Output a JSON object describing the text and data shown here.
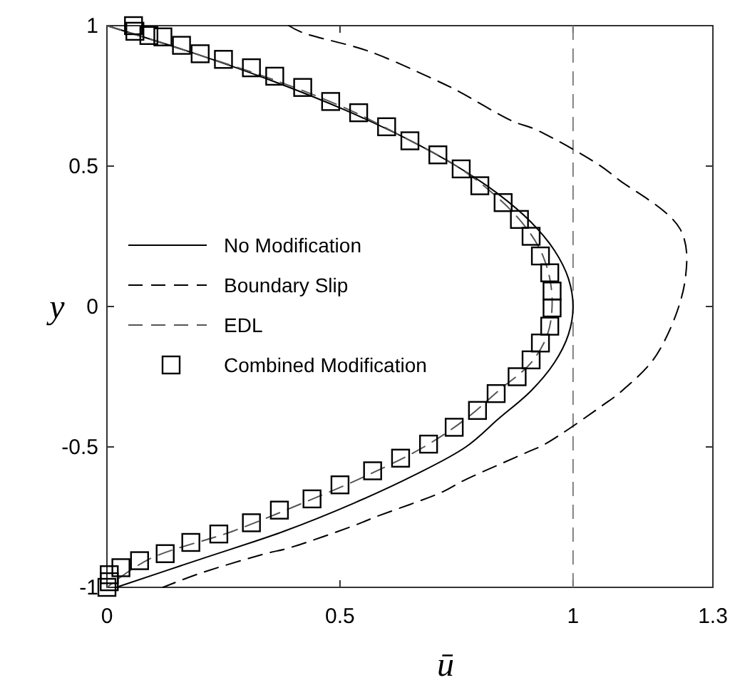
{
  "chart_data": {
    "type": "line",
    "xlabel": "ū",
    "ylabel": "y",
    "xlim": [
      0,
      1.3
    ],
    "xticks": [
      0,
      0.5,
      1,
      1.3
    ],
    "ylim": [
      -1,
      1
    ],
    "yticks": [
      -1,
      -0.5,
      0,
      0.5,
      1
    ],
    "grid": false,
    "legend": "left",
    "ref_lines": [
      {
        "axis": "x",
        "value": 1,
        "color": "#808080",
        "line_style": "dashed"
      }
    ],
    "series": [
      {
        "name": "No Modification",
        "color": "#000000",
        "line_style": "solid",
        "x": [
          0,
          0.19,
          0.36,
          0.51,
          0.64,
          0.75,
          0.84,
          0.91,
          0.96,
          0.99,
          1.0,
          0.99,
          0.96,
          0.91,
          0.84,
          0.77,
          0.66,
          0.53,
          0.38,
          0.2,
          0.02
        ],
        "values": [
          1,
          0.9,
          0.8,
          0.7,
          0.6,
          0.5,
          0.4,
          0.3,
          0.2,
          0.1,
          0,
          -0.1,
          -0.2,
          -0.3,
          -0.4,
          -0.5,
          -0.6,
          -0.7,
          -0.8,
          -0.9,
          -1
        ]
      },
      {
        "name": "Boundary Slip",
        "color": "#000000",
        "line_style": "dashed",
        "x": [
          0.39,
          0.42,
          0.56,
          0.7,
          0.75,
          0.87,
          0.92,
          1.055,
          1.095,
          1.23,
          1.24,
          1.18,
          1.105,
          1.065,
          0.94,
          0.9,
          0.765,
          0.72,
          0.575,
          0.53,
          0.39,
          0.34,
          0.2,
          0.12
        ],
        "values": [
          1,
          0.975,
          0.91,
          0.81,
          0.77,
          0.66,
          0.63,
          0.505,
          0.455,
          0.275,
          0.09,
          -0.17,
          -0.3,
          -0.35,
          -0.49,
          -0.52,
          -0.62,
          -0.66,
          -0.75,
          -0.78,
          -0.86,
          -0.88,
          -0.95,
          -1
        ]
      },
      {
        "name": "EDL",
        "color": "#555555",
        "line_style": "dashed",
        "x": [
          0,
          0.19,
          0.37,
          0.52,
          0.64,
          0.75,
          0.83,
          0.89,
          0.93,
          0.95,
          0.955,
          0.945,
          0.91,
          0.84,
          0.77,
          0.68,
          0.56,
          0.42,
          0.27,
          0.09,
          0
        ],
        "values": [
          1,
          0.9,
          0.8,
          0.7,
          0.6,
          0.5,
          0.4,
          0.3,
          0.2,
          0.1,
          0,
          -0.1,
          -0.2,
          -0.3,
          -0.4,
          -0.5,
          -0.6,
          -0.7,
          -0.8,
          -0.9,
          -1
        ]
      },
      {
        "name": "Combined Modification",
        "type": "scatter",
        "color": "#000000",
        "marker": "square",
        "x": [
          0.057,
          0.06,
          0.09,
          0.12,
          0.16,
          0.2,
          0.25,
          0.31,
          0.36,
          0.42,
          0.48,
          0.54,
          0.6,
          0.65,
          0.71,
          0.76,
          0.8,
          0.85,
          0.885,
          0.91,
          0.93,
          0.95,
          0.955,
          0.955,
          0.95,
          0.93,
          0.91,
          0.88,
          0.835,
          0.795,
          0.745,
          0.69,
          0.63,
          0.57,
          0.5,
          0.44,
          0.37,
          0.31,
          0.24,
          0.18,
          0.125,
          0.07,
          0.03,
          0.005,
          0.005,
          0
        ],
        "values": [
          1.0,
          0.98,
          0.965,
          0.96,
          0.93,
          0.9,
          0.88,
          0.85,
          0.82,
          0.78,
          0.73,
          0.69,
          0.64,
          0.59,
          0.54,
          0.49,
          0.43,
          0.37,
          0.31,
          0.25,
          0.18,
          0.12,
          0.055,
          -0.005,
          -0.07,
          -0.13,
          -0.19,
          -0.25,
          -0.31,
          -0.37,
          -0.43,
          -0.49,
          -0.54,
          -0.585,
          -0.635,
          -0.685,
          -0.725,
          -0.77,
          -0.81,
          -0.84,
          -0.88,
          -0.905,
          -0.93,
          -0.955,
          -0.98,
          -1.0
        ]
      }
    ]
  }
}
